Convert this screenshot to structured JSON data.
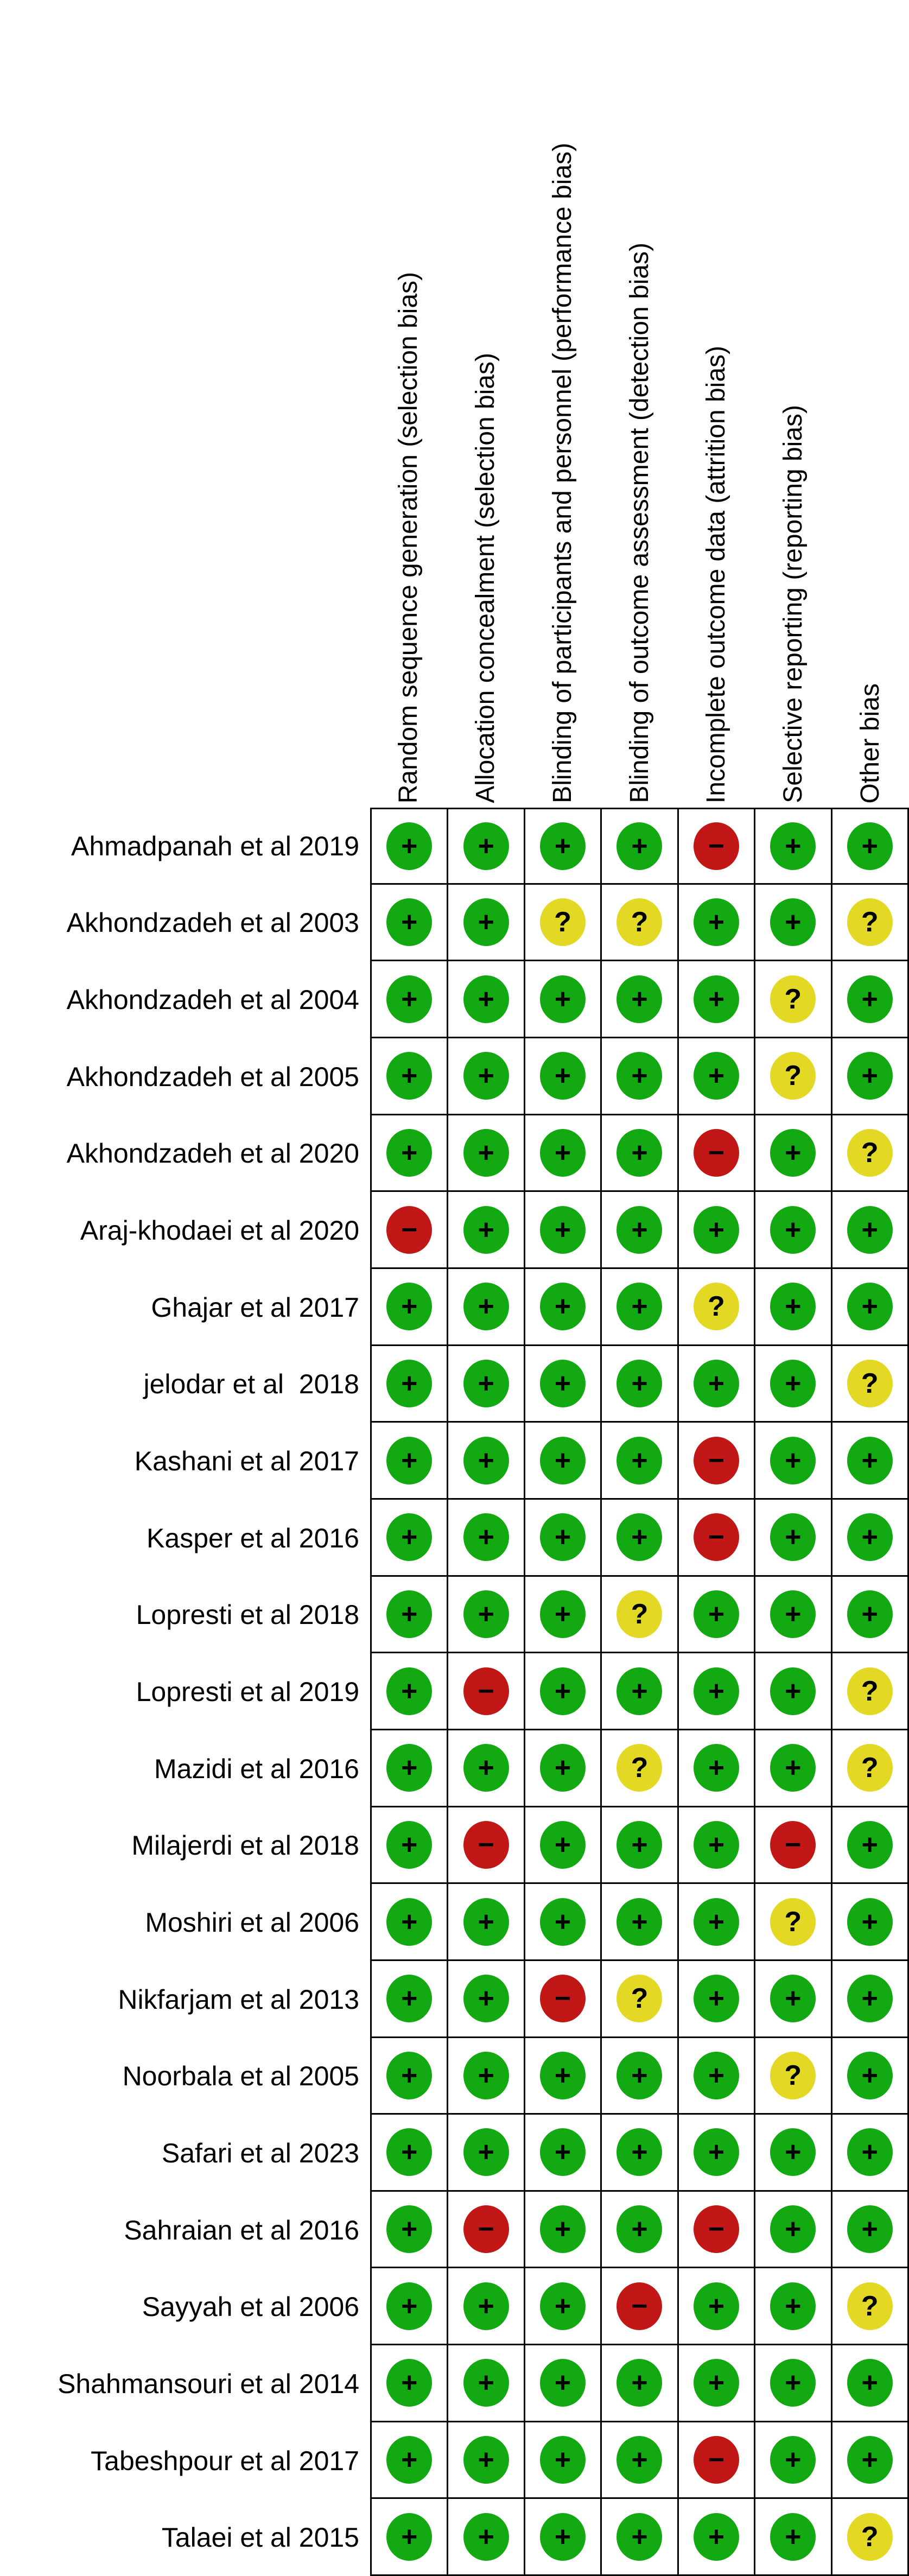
{
  "colors": {
    "low_risk": "#12a912",
    "unclear": "#e3d924",
    "high_risk": "#c11717",
    "symbol": "#000000",
    "grid_line": "#000000",
    "background": "#ffffff"
  },
  "display_glyphs": {
    "+": "+",
    "-": "−",
    "?": "?"
  },
  "chart_data": {
    "type": "table",
    "title": "",
    "legend_position": "none",
    "columns": [
      "Random sequence generation (selection bias)",
      "Allocation concealment (selection bias)",
      "Blinding of participants and personnel (performance bias)",
      "Blinding of outcome assessment (detection bias)",
      "Incomplete outcome data (attrition bias)",
      "Selective reporting (reporting bias)",
      "Other bias"
    ],
    "symbol_colors": {
      "+": "#12a912",
      "?": "#e3d924",
      "-": "#c11717"
    },
    "rows": [
      {
        "study": "Ahmadpanah et al 2019",
        "judgements": [
          "+",
          "+",
          "+",
          "+",
          "-",
          "+",
          "+"
        ]
      },
      {
        "study": "Akhondzadeh et al 2003",
        "judgements": [
          "+",
          "+",
          "?",
          "?",
          "+",
          "+",
          "?"
        ]
      },
      {
        "study": "Akhondzadeh et al 2004",
        "judgements": [
          "+",
          "+",
          "+",
          "+",
          "+",
          "?",
          "+"
        ]
      },
      {
        "study": "Akhondzadeh et al 2005",
        "judgements": [
          "+",
          "+",
          "+",
          "+",
          "+",
          "?",
          "+"
        ]
      },
      {
        "study": "Akhondzadeh et al 2020",
        "judgements": [
          "+",
          "+",
          "+",
          "+",
          "-",
          "+",
          "?"
        ]
      },
      {
        "study": "Araj-khodaei et al 2020",
        "judgements": [
          "-",
          "+",
          "+",
          "+",
          "+",
          "+",
          "+"
        ]
      },
      {
        "study": "Ghajar et al 2017",
        "judgements": [
          "+",
          "+",
          "+",
          "+",
          "?",
          "+",
          "+"
        ]
      },
      {
        "study": "jelodar et al  2018",
        "judgements": [
          "+",
          "+",
          "+",
          "+",
          "+",
          "+",
          "?"
        ]
      },
      {
        "study": "Kashani et al 2017",
        "judgements": [
          "+",
          "+",
          "+",
          "+",
          "-",
          "+",
          "+"
        ]
      },
      {
        "study": "Kasper et al 2016",
        "judgements": [
          "+",
          "+",
          "+",
          "+",
          "-",
          "+",
          "+"
        ]
      },
      {
        "study": "Lopresti et al 2018",
        "judgements": [
          "+",
          "+",
          "+",
          "?",
          "+",
          "+",
          "+"
        ]
      },
      {
        "study": "Lopresti et al 2019",
        "judgements": [
          "+",
          "-",
          "+",
          "+",
          "+",
          "+",
          "?"
        ]
      },
      {
        "study": "Mazidi et al 2016",
        "judgements": [
          "+",
          "+",
          "+",
          "?",
          "+",
          "+",
          "?"
        ]
      },
      {
        "study": "Milajerdi et al 2018",
        "judgements": [
          "+",
          "-",
          "+",
          "+",
          "+",
          "-",
          "+"
        ]
      },
      {
        "study": "Moshiri et al 2006",
        "judgements": [
          "+",
          "+",
          "+",
          "+",
          "+",
          "?",
          "+"
        ]
      },
      {
        "study": "Nikfarjam et al 2013",
        "judgements": [
          "+",
          "+",
          "-",
          "?",
          "+",
          "+",
          "+"
        ]
      },
      {
        "study": "Noorbala et al 2005",
        "judgements": [
          "+",
          "+",
          "+",
          "+",
          "+",
          "?",
          "+"
        ]
      },
      {
        "study": "Safari et al 2023",
        "judgements": [
          "+",
          "+",
          "+",
          "+",
          "+",
          "+",
          "+"
        ]
      },
      {
        "study": "Sahraian et al 2016",
        "judgements": [
          "+",
          "-",
          "+",
          "+",
          "-",
          "+",
          "+"
        ]
      },
      {
        "study": "Sayyah et al 2006",
        "judgements": [
          "+",
          "+",
          "+",
          "-",
          "+",
          "+",
          "?"
        ]
      },
      {
        "study": "Shahmansouri et al 2014",
        "judgements": [
          "+",
          "+",
          "+",
          "+",
          "+",
          "+",
          "+"
        ]
      },
      {
        "study": "Tabeshpour et al 2017",
        "judgements": [
          "+",
          "+",
          "+",
          "+",
          "-",
          "+",
          "+"
        ]
      },
      {
        "study": "Talaei et al 2015",
        "judgements": [
          "+",
          "+",
          "+",
          "+",
          "+",
          "+",
          "?"
        ]
      }
    ]
  }
}
